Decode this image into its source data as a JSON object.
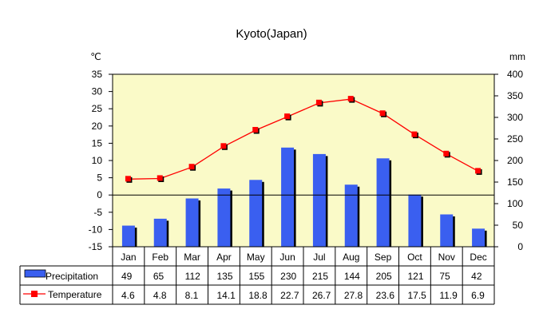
{
  "chart_data": {
    "type": "bar",
    "title": "Kyoto(Japan)",
    "categories": [
      "Jan",
      "Feb",
      "Mar",
      "Apr",
      "May",
      "Jun",
      "Jul",
      "Aug",
      "Sep",
      "Oct",
      "Nov",
      "Dec"
    ],
    "left_unit": "℃",
    "right_unit": "mm",
    "left_axis": {
      "min": -15,
      "max": 35,
      "step": 5
    },
    "right_axis": {
      "min": 0,
      "max": 400,
      "step": 50
    },
    "series": [
      {
        "name": "Precipitation",
        "type": "bar",
        "axis": "right",
        "color": "#3a5ff0",
        "values": [
          49,
          65,
          112,
          135,
          155,
          230,
          215,
          144,
          205,
          121,
          75,
          42
        ]
      },
      {
        "name": "Temperature",
        "type": "line",
        "axis": "left",
        "color": "#ff0000",
        "values": [
          4.6,
          4.8,
          8.1,
          14.1,
          18.8,
          22.7,
          26.7,
          27.8,
          23.6,
          17.5,
          11.9,
          6.9
        ]
      }
    ],
    "plot_background": "#fafac8",
    "zero_line": true,
    "grid": false,
    "legend": "table-bottom"
  }
}
